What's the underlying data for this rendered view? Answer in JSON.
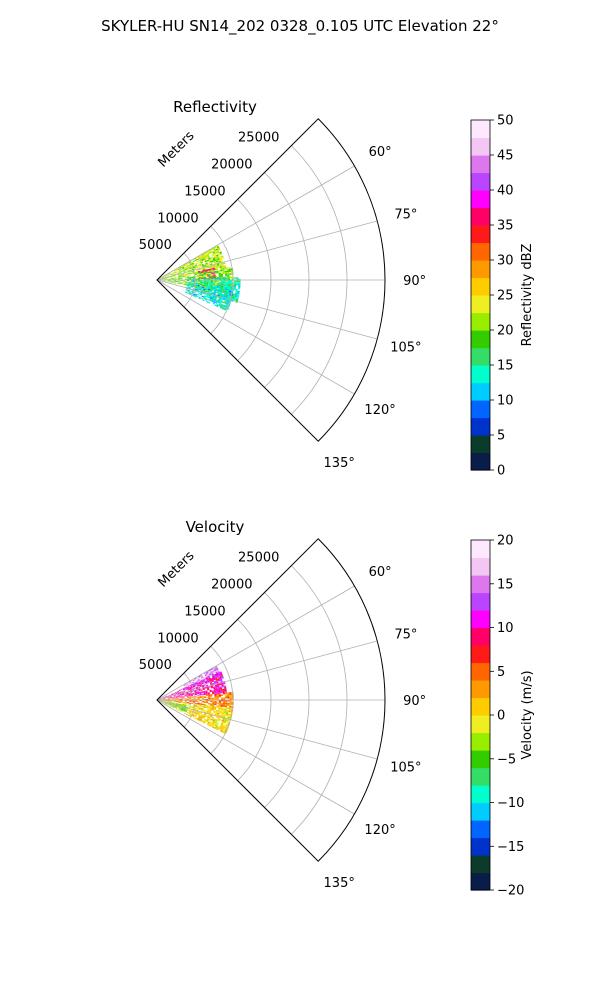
{
  "figure": {
    "suptitle": "SKYLER-HU  SN14_202  0328_0.105 UTC Elevation 22°"
  },
  "colors": {
    "grid": "#b0b0b0",
    "frame": "#000000"
  },
  "chart_data": [
    {
      "type": "heatmap",
      "projection": "polar-sector",
      "title": "Reflectivity",
      "radial_label": "Meters",
      "theta_ticks": [
        60,
        75,
        90,
        105,
        120,
        135
      ],
      "theta_tick_labels": [
        "60°",
        "75°",
        "90°",
        "105°",
        "120°",
        "135°"
      ],
      "theta_range_deg": [
        45,
        135
      ],
      "radial_ticks": [
        5000,
        10000,
        15000,
        20000,
        25000
      ],
      "radial_tick_labels": [
        "5000",
        "10000",
        "15000",
        "20000",
        "25000"
      ],
      "r_max": 30000,
      "grid": true,
      "colorbar": {
        "label": "Reflectivity dBZ",
        "range": [
          0,
          50
        ],
        "ticks": [
          0,
          5,
          10,
          15,
          20,
          25,
          30,
          35,
          40,
          45,
          50
        ],
        "tick_labels": [
          "0",
          "5",
          "10",
          "15",
          "20",
          "25",
          "30",
          "35",
          "40",
          "45",
          "50"
        ],
        "stops": [
          "#0a1c4a",
          "#0b3b2a",
          "#0033cc",
          "#0066ff",
          "#00ccff",
          "#00ffcc",
          "#33dd66",
          "#33cc00",
          "#99ee00",
          "#eeee22",
          "#ffcc00",
          "#ff9900",
          "#ff6600",
          "#ff1a1a",
          "#ff0066",
          "#ff00ff",
          "#bb44ff",
          "#dd77ee",
          "#f4c6f4",
          "#fde8fd"
        ]
      },
      "echo": {
        "blobs": [
          {
            "theta_range": [
              60,
              80
            ],
            "r_range": [
              0,
              9000
            ],
            "value": 22
          },
          {
            "theta_range": [
              78,
              88
            ],
            "r_range": [
              5500,
              7500
            ],
            "value": 36
          },
          {
            "theta_range": [
              80,
              100
            ],
            "r_range": [
              0,
              10000
            ],
            "value": 20
          },
          {
            "theta_range": [
              88,
              106
            ],
            "r_range": [
              4000,
              11000
            ],
            "value": 15
          },
          {
            "theta_range": [
              96,
              114
            ],
            "r_range": [
              4000,
              10000
            ],
            "value": 13
          }
        ],
        "cell_deg": 1.2,
        "cell_m": 280
      }
    },
    {
      "type": "heatmap",
      "projection": "polar-sector",
      "title": "Velocity",
      "radial_label": "Meters",
      "theta_ticks": [
        60,
        75,
        90,
        105,
        120,
        135
      ],
      "theta_tick_labels": [
        "60°",
        "75°",
        "90°",
        "105°",
        "120°",
        "135°"
      ],
      "theta_range_deg": [
        45,
        135
      ],
      "radial_ticks": [
        5000,
        10000,
        15000,
        20000,
        25000
      ],
      "radial_tick_labels": [
        "5000",
        "10000",
        "15000",
        "20000",
        "25000"
      ],
      "r_max": 30000,
      "grid": true,
      "colorbar": {
        "label": "Velocity (m/s)",
        "range": [
          -20,
          20
        ],
        "ticks": [
          -20,
          -15,
          -10,
          -5,
          0,
          5,
          10,
          15,
          20
        ],
        "tick_labels": [
          "−20",
          "−15",
          "−10",
          "−5",
          "0",
          "5",
          "10",
          "15",
          "20"
        ],
        "stops": [
          "#0a1c4a",
          "#0b3b2a",
          "#0033cc",
          "#0066ff",
          "#00ccff",
          "#00ffcc",
          "#33dd66",
          "#33cc00",
          "#99ee00",
          "#eeee22",
          "#ffcc00",
          "#ff9900",
          "#ff6600",
          "#ff1a1a",
          "#ff0066",
          "#ff00ff",
          "#bb44ff",
          "#dd77ee",
          "#f4c6f4",
          "#fde8fd"
        ]
      },
      "echo": {
        "blobs": [
          {
            "theta_range": [
              60,
              72
            ],
            "r_range": [
              4000,
              9000
            ],
            "value": 15
          },
          {
            "theta_range": [
              66,
              84
            ],
            "r_range": [
              0,
              9000
            ],
            "value": 10
          },
          {
            "theta_range": [
              84,
              96
            ],
            "r_range": [
              0,
              10000
            ],
            "value": 4
          },
          {
            "theta_range": [
              96,
              116
            ],
            "r_range": [
              0,
              10000
            ],
            "value": 0
          },
          {
            "theta_range": [
              100,
              112
            ],
            "r_range": [
              0,
              4000
            ],
            "value": -5
          }
        ],
        "cell_deg": 1.2,
        "cell_m": 280
      }
    }
  ]
}
